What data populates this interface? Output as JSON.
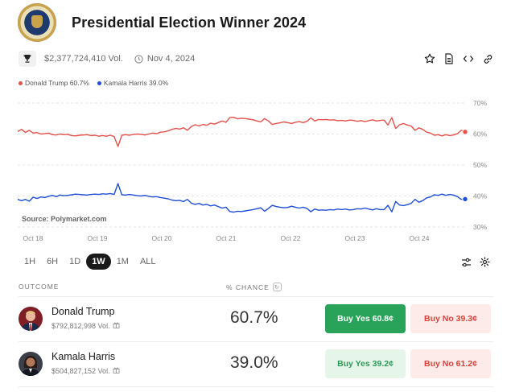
{
  "header": {
    "title": "Presidential Election Winner 2024"
  },
  "meta": {
    "volume": "$2,377,724,410 Vol.",
    "date": "Nov 4, 2024"
  },
  "icons": {
    "trophy": "trophy-icon",
    "clock": "clock-icon",
    "star": "star-icon",
    "document": "document-icon",
    "embed": "code-icon",
    "link": "link-icon",
    "filters": "sliders-icon",
    "settings": "gear-icon",
    "gift": "gift-icon",
    "refresh": "refresh-icon"
  },
  "colors": {
    "trump": "#e5524a",
    "harris": "#1f4fd6",
    "buy_yes": "#29a35a",
    "buy_no": "#d9423c"
  },
  "chart_legend": {
    "trump": "Donald Trump 60.7%",
    "harris": "Kamala Harris 39.0%"
  },
  "chart_source": "Source: Polymarket.com",
  "chart_data": {
    "type": "line",
    "x_ticks": [
      "Oct 18",
      "Oct 19",
      "Oct 20",
      "Oct 21",
      "Oct 22",
      "Oct 23",
      "Oct 24"
    ],
    "y_ticks": [
      "70%",
      "60%",
      "50%",
      "40%",
      "30%"
    ],
    "ylim": [
      30,
      70
    ],
    "grid": true,
    "legend_position": "top-left",
    "series": [
      {
        "name": "Donald Trump",
        "x_start": "Oct 18",
        "x_end": "Oct 24",
        "values": [
          60.8,
          61.5,
          60.5,
          61.2,
          60.3,
          60.5,
          60.0,
          60.1,
          60.3,
          59.8,
          59.7,
          60.0,
          59.8,
          59.9,
          59.5,
          59.4,
          59.6,
          59.7,
          59.8,
          59.5,
          59.6,
          59.3,
          59.5,
          59.3,
          59.6,
          59.2,
          56.0,
          59.6,
          59.8,
          59.6,
          59.9,
          60.0,
          59.9,
          59.7,
          60.0,
          60.3,
          60.1,
          60.6,
          60.7,
          61.0,
          61.5,
          61.8,
          61.6,
          62.0,
          61.2,
          62.4,
          63.0,
          62.6,
          63.1,
          62.8,
          63.5,
          63.2,
          63.7,
          64.2,
          63.8,
          65.3,
          65.4,
          64.9,
          65.1,
          65.0,
          64.8,
          64.6,
          64.2,
          63.9,
          65.0,
          64.2,
          63.1,
          63.4,
          63.6,
          63.9,
          63.7,
          63.4,
          63.8,
          64.0,
          63.7,
          64.1,
          65.2,
          64.2,
          64.7,
          64.6,
          64.7,
          64.5,
          64.6,
          64.3,
          64.4,
          64.2,
          64.5,
          64.4,
          64.1,
          64.3,
          64.0,
          64.3,
          64.6,
          64.2,
          64.4,
          64.5,
          62.9,
          65.3,
          61.8,
          63.0,
          63.4,
          62.9,
          62.6,
          61.2,
          62.0,
          61.5,
          60.6,
          60.3,
          59.6,
          59.8,
          59.4,
          59.8,
          59.5,
          59.7,
          60.1,
          61.2,
          60.7
        ]
      },
      {
        "name": "Kamala Harris",
        "x_start": "Oct 18",
        "x_end": "Oct 24",
        "values": [
          38.9,
          38.5,
          38.9,
          38.3,
          39.6,
          39.2,
          39.7,
          39.5,
          39.9,
          40.2,
          39.8,
          40.3,
          40.1,
          40.2,
          40.4,
          40.6,
          40.5,
          40.4,
          40.3,
          40.5,
          40.6,
          40.5,
          40.7,
          40.6,
          40.8,
          40.5,
          44.0,
          40.4,
          40.3,
          40.5,
          40.3,
          40.1,
          40.0,
          40.2,
          39.9,
          39.7,
          39.8,
          39.5,
          39.3,
          39.1,
          38.7,
          38.5,
          38.6,
          38.2,
          38.9,
          37.7,
          37.3,
          37.6,
          37.1,
          37.3,
          36.8,
          37.1,
          36.6,
          36.1,
          36.4,
          35.0,
          34.8,
          35.1,
          35.0,
          35.2,
          35.4,
          35.6,
          35.9,
          36.2,
          35.1,
          36.0,
          37.0,
          36.6,
          36.4,
          36.2,
          36.3,
          36.7,
          36.4,
          36.1,
          36.4,
          36.0,
          34.9,
          35.8,
          35.4,
          35.5,
          35.4,
          35.6,
          35.5,
          35.8,
          35.6,
          35.8,
          35.5,
          35.6,
          35.9,
          35.8,
          36.1,
          35.8,
          35.5,
          35.9,
          35.6,
          35.6,
          37.0,
          34.9,
          38.2,
          37.1,
          36.9,
          37.2,
          37.6,
          38.9,
          38.0,
          38.5,
          39.4,
          39.7,
          40.4,
          40.2,
          40.6,
          40.2,
          40.5,
          40.3,
          39.8,
          38.9,
          39.0
        ]
      }
    ]
  },
  "time_ranges": [
    {
      "label": "1H",
      "active": false
    },
    {
      "label": "6H",
      "active": false
    },
    {
      "label": "1D",
      "active": false
    },
    {
      "label": "1W",
      "active": true
    },
    {
      "label": "1M",
      "active": false
    },
    {
      "label": "ALL",
      "active": false
    }
  ],
  "table": {
    "col_outcome": "OUTCOME",
    "col_chance": "% CHANCE",
    "rows": [
      {
        "name": "Donald Trump",
        "volume": "$792,812,998 Vol.",
        "chance": "60.7%",
        "buy_yes": "Buy Yes 60.8¢",
        "buy_no": "Buy No 39.3¢"
      },
      {
        "name": "Kamala Harris",
        "volume": "$504,827,152 Vol.",
        "chance": "39.0%",
        "buy_yes": "Buy Yes 39.2¢",
        "buy_no": "Buy No 61.2¢"
      }
    ]
  }
}
